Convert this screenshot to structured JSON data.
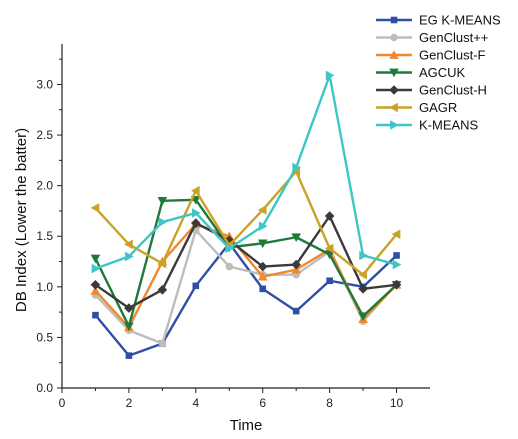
{
  "chart_data": {
    "type": "line",
    "xlabel": "Time",
    "ylabel": "DB Index (Lower the batter)",
    "xlim": [
      0,
      11
    ],
    "ylim": [
      0,
      3.4
    ],
    "xticks": [
      0,
      2,
      4,
      6,
      8,
      10
    ],
    "yticks": [
      0.0,
      0.5,
      1.0,
      1.5,
      2.0,
      2.5,
      3.0
    ],
    "ytick_labels": [
      "0.0",
      "0.5",
      "1.0",
      "1.5",
      "2.0",
      "2.5",
      "3.0"
    ],
    "xtick_labels": [
      "0",
      "2",
      "4",
      "6",
      "8",
      "10"
    ],
    "x": [
      1,
      2,
      3,
      4,
      5,
      6,
      7,
      8,
      9,
      10
    ],
    "legend_position": "top-right",
    "grid": false,
    "series": [
      {
        "name": "EG K-MEANS",
        "color": "#2e4fa3",
        "marker": "square",
        "values": [
          0.72,
          0.32,
          0.44,
          1.01,
          1.43,
          0.98,
          0.76,
          1.06,
          1.0,
          1.31
        ]
      },
      {
        "name": "GenClust++",
        "color": "#bdbdbd",
        "marker": "circle",
        "values": [
          0.92,
          0.57,
          0.44,
          1.56,
          1.2,
          1.12,
          1.12,
          1.35,
          0.66,
          1.03
        ]
      },
      {
        "name": "GenClust-F",
        "color": "#f0882c",
        "marker": "triangle-up",
        "values": [
          0.96,
          0.6,
          1.25,
          1.62,
          1.5,
          1.1,
          1.17,
          1.37,
          0.68,
          1.02
        ]
      },
      {
        "name": "AGCUK",
        "color": "#1f7a3a",
        "marker": "triangle-down",
        "values": [
          1.28,
          0.61,
          1.85,
          1.86,
          1.39,
          1.43,
          1.49,
          1.32,
          0.71,
          1.02
        ]
      },
      {
        "name": "GenClust-H",
        "color": "#3a3a3a",
        "marker": "diamond",
        "values": [
          1.02,
          0.79,
          0.97,
          1.63,
          1.46,
          1.2,
          1.22,
          1.7,
          0.98,
          1.02
        ]
      },
      {
        "name": "GAGR",
        "color": "#c9a227",
        "marker": "triangle-left",
        "values": [
          1.78,
          1.42,
          1.23,
          1.95,
          1.41,
          1.76,
          2.14,
          1.38,
          1.12,
          1.52
        ]
      },
      {
        "name": "K-MEANS",
        "color": "#3ec6c6",
        "marker": "triangle-right",
        "values": [
          1.18,
          1.3,
          1.64,
          1.73,
          1.38,
          1.6,
          2.18,
          3.09,
          1.31,
          1.22
        ]
      }
    ]
  }
}
